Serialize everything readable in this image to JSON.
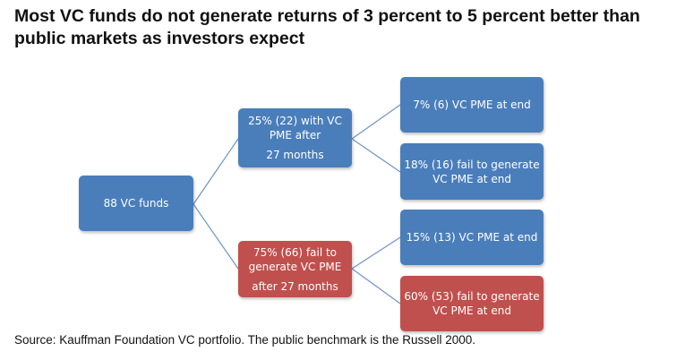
{
  "title": {
    "line1": "Most VC funds do not generate returns of 3 percent to 5 percent better than",
    "line2": "public markets as investors expect"
  },
  "colors": {
    "blue_box": "#4a7ebb",
    "red_box": "#c0504d",
    "connector": "#6f93c6"
  },
  "nodes": {
    "root": {
      "text": "88 VC funds"
    },
    "upper": {
      "line1": "25% (22) with VC",
      "line2": "PME after",
      "line3": "27 months"
    },
    "lower": {
      "line1": "75% (66) fail to",
      "line2": "generate VC PME",
      "line3": "after 27 months"
    },
    "upper_a": {
      "text": "7% (6) VC PME at end"
    },
    "upper_b": {
      "line1": "18% (16) fail to generate",
      "line2": "VC PME at end"
    },
    "lower_a": {
      "text": "15% (13) VC PME at end"
    },
    "lower_b": {
      "line1": "60% (53) fail to generate",
      "line2": "VC PME at end"
    }
  },
  "source": "Source: Kauffman Foundation VC portfolio. The public benchmark is the Russell 2000."
}
